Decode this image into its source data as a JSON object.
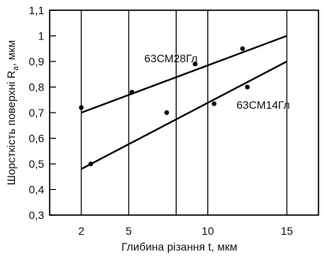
{
  "chart_data": {
    "type": "scatter",
    "title": "",
    "xlabel": "Глибина різання t, мкм",
    "ylabel": "Шорсткість поверхні R",
    "ylabel_subscript": "a",
    "ylabel_suffix": ", мкм",
    "x_ticks": [
      2,
      5,
      8,
      10,
      15
    ],
    "x_tick_labels": [
      "2",
      "5",
      "",
      "10",
      "15"
    ],
    "x_range": [
      0,
      17
    ],
    "y_ticks": [
      0.3,
      0.4,
      0.5,
      0.6,
      0.7,
      0.8,
      0.9,
      1.0,
      1.1
    ],
    "y_tick_labels": [
      "0,3",
      "0,4",
      "0,5",
      "0,6",
      "0,7",
      "0,8",
      "0,9",
      "1",
      "1,1"
    ],
    "ylim": [
      0.3,
      1.1
    ],
    "grid": "vertical",
    "series": [
      {
        "name": "63СМ28Гл",
        "points": [
          {
            "x": 2.0,
            "y": 0.72
          },
          {
            "x": 5.2,
            "y": 0.78
          },
          {
            "x": 9.2,
            "y": 0.89
          },
          {
            "x": 12.2,
            "y": 0.95
          }
        ],
        "fit": [
          [
            2.0,
            0.7
          ],
          [
            15.0,
            1.0
          ]
        ]
      },
      {
        "name": "63СМ14Гл",
        "points": [
          {
            "x": 2.6,
            "y": 0.5
          },
          {
            "x": 7.4,
            "y": 0.7
          },
          {
            "x": 10.4,
            "y": 0.735
          },
          {
            "x": 12.5,
            "y": 0.8
          }
        ],
        "fit": [
          [
            2.0,
            0.48
          ],
          [
            15.0,
            0.9
          ]
        ]
      }
    ],
    "colors": {
      "line": "#000000",
      "grid": "#000000",
      "text": "#111111"
    }
  }
}
